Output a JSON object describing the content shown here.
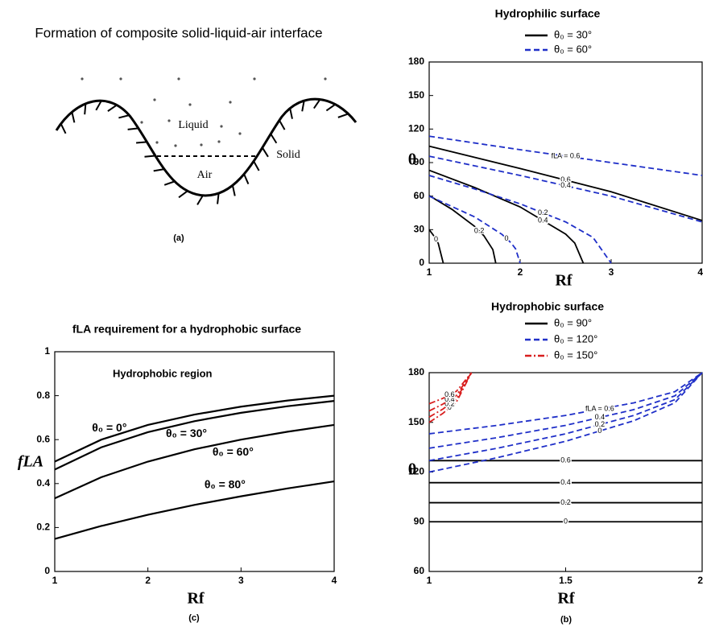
{
  "diagram": {
    "title": "Formation of composite solid-liquid-air interface",
    "liquid": "Liquid",
    "solid": "Solid",
    "air": "Air",
    "caption": "(a)"
  },
  "chart_data": [
    {
      "type": "line",
      "title": "Hydrophilic surface",
      "x_label": "Rf",
      "y_label": "θ",
      "xlim": [
        1,
        4
      ],
      "xticks": [
        1,
        2,
        3,
        4
      ],
      "ylim": [
        0,
        180
      ],
      "yticks": [
        0,
        30,
        60,
        90,
        120,
        150,
        180
      ],
      "series": [
        {
          "name": "θ₀ = 30°",
          "color": "#000000",
          "dash": "solid",
          "contours": [
            {
              "label": "0",
              "x": [
                1,
                1.05,
                1.1,
                1.155
              ],
              "values": [
                30,
                24.6,
                17.7,
                0
              ]
            },
            {
              "label": "0.2",
              "x": [
                1,
                1.25,
                1.5,
                1.6,
                1.7,
                1.732
              ],
              "values": [
                60.5,
                48.2,
                32.9,
                24.7,
                12.1,
                0
              ]
            },
            {
              "label": "0.4",
              "x": [
                1,
                1.5,
                2,
                2.5,
                2.6,
                2.694
              ],
              "values": [
                83.1,
                67.7,
                50.3,
                26,
                18,
                0
              ]
            },
            {
              "label": "0.6",
              "x": [
                1,
                2,
                3,
                4
              ],
              "values": [
                104.7,
                84.7,
                63.9,
                38.2
              ]
            }
          ]
        },
        {
          "name": "θ₀ = 60°",
          "color": "#1f2fc8",
          "dash": "dashed",
          "contours": [
            {
              "label": "0",
              "x": [
                1,
                1.5,
                1.8,
                1.9,
                1.95,
                2
              ],
              "values": [
                60,
                41.4,
                25.8,
                18.2,
                12.8,
                0
              ]
            },
            {
              "label": "0.2",
              "x": [
                1,
                1.5,
                2,
                2.5,
                2.8,
                3
              ],
              "values": [
                78.5,
                66.4,
                53.1,
                36.9,
                23.1,
                0
              ]
            },
            {
              "label": "0.4",
              "x": [
                1,
                2,
                3,
                4
              ],
              "values": [
                95.7,
                78.5,
                60,
                36.9
              ]
            },
            {
              "label": "fLA = 0.6",
              "x": [
                1,
                2,
                3,
                4
              ],
              "values": [
                113.6,
                101.5,
                90,
                78.5
              ]
            }
          ]
        }
      ]
    },
    {
      "type": "line",
      "title": "fLA requirement for a hydrophobic surface",
      "annotation": "Hydrophobic region",
      "caption": "(c)",
      "x_label": "Rf",
      "y_label": "fLA",
      "xlim": [
        1,
        4
      ],
      "xticks": [
        1,
        2,
        3,
        4
      ],
      "ylim": [
        0,
        1
      ],
      "yticks": [
        0,
        0.2,
        0.4,
        0.6,
        0.8,
        1
      ],
      "x": [
        1,
        1.5,
        2,
        2.5,
        3,
        3.5,
        4
      ],
      "series": [
        {
          "name": "θ₀ = 0°",
          "color": "#000000",
          "values": [
            0.5,
            0.6,
            0.667,
            0.714,
            0.75,
            0.778,
            0.8
          ]
        },
        {
          "name": "θ₀ = 30°",
          "color": "#000000",
          "values": [
            0.464,
            0.565,
            0.634,
            0.684,
            0.722,
            0.752,
            0.776
          ]
        },
        {
          "name": "θ₀ = 60°",
          "color": "#000000",
          "values": [
            0.333,
            0.429,
            0.5,
            0.556,
            0.6,
            0.636,
            0.667
          ]
        },
        {
          "name": "θ₀ = 80°",
          "color": "#000000",
          "values": [
            0.148,
            0.207,
            0.258,
            0.303,
            0.342,
            0.378,
            0.41
          ]
        }
      ]
    },
    {
      "type": "line",
      "title": "Hydrophobic surface",
      "caption": "(b)",
      "x_label": "Rf",
      "y_label": "θ",
      "xlim": [
        1,
        2
      ],
      "xticks": [
        1,
        1.5,
        2
      ],
      "ylim": [
        60,
        180
      ],
      "yticks": [
        60,
        90,
        120,
        150,
        180
      ],
      "series": [
        {
          "name": "θ₀ = 90°",
          "color": "#000000",
          "dash": "solid",
          "contours": [
            {
              "label": "0",
              "x": [
                1,
                2
              ],
              "values": [
                90,
                90
              ]
            },
            {
              "label": "0.2",
              "x": [
                1,
                2
              ],
              "values": [
                101.5,
                101.5
              ]
            },
            {
              "label": "0.4",
              "x": [
                1,
                2
              ],
              "values": [
                113.6,
                113.6
              ]
            },
            {
              "label": "0.6",
              "x": [
                1,
                2
              ],
              "values": [
                126.9,
                126.9
              ]
            }
          ]
        },
        {
          "name": "θ₀ = 120°",
          "color": "#1f2fc8",
          "dash": "dashed",
          "contours": [
            {
              "label": "0",
              "x": [
                1,
                1.25,
                1.5,
                1.75,
                1.9,
                2
              ],
              "values": [
                120,
                128.7,
                138.6,
                151,
                161.8,
                180
              ]
            },
            {
              "label": "0.2",
              "x": [
                1,
                1.25,
                1.5,
                1.75,
                1.9,
                2
              ],
              "values": [
                126.9,
                134.4,
                143.1,
                154.2,
                163.7,
                180
              ]
            },
            {
              "label": "0.4",
              "x": [
                1,
                1.25,
                1.5,
                1.75,
                1.9,
                2
              ],
              "values": [
                134.4,
                140.8,
                148.2,
                157.7,
                166,
                180
              ]
            },
            {
              "label": "fLA = 0.6",
              "x": [
                1,
                1.25,
                1.5,
                1.75,
                1.9,
                2
              ],
              "values": [
                143.1,
                148.2,
                154.2,
                161.8,
                168.5,
                180
              ]
            }
          ]
        },
        {
          "name": "θ₀ = 150°",
          "color": "#d81e1e",
          "dash": "dashdot",
          "contours": [
            {
              "label": "0",
              "x": [
                1,
                1.05,
                1.1,
                1.155
              ],
              "values": [
                150,
                155.4,
                162.3,
                180
              ]
            },
            {
              "label": "0.2",
              "x": [
                1,
                1.05,
                1.1,
                1.155
              ],
              "values": [
                153.2,
                158,
                164.2,
                180
              ]
            },
            {
              "label": "0.4",
              "x": [
                1,
                1.05,
                1.1,
                1.155
              ],
              "values": [
                156.9,
                161,
                166.3,
                180
              ]
            },
            {
              "label": "0.6",
              "x": [
                1,
                1.05,
                1.1,
                1.155
              ],
              "values": [
                161.2,
                164.5,
                168.8,
                180
              ]
            }
          ]
        }
      ]
    }
  ]
}
